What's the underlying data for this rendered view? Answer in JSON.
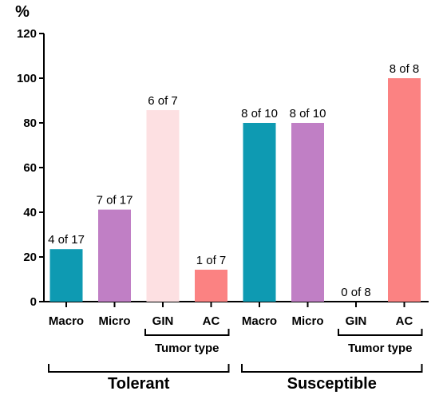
{
  "chart_data": {
    "type": "bar",
    "ylabel": "%",
    "ylim": [
      0,
      120
    ],
    "yticks": [
      0,
      20,
      40,
      60,
      80,
      100,
      120
    ],
    "grid": false,
    "legend": "none",
    "bars": [
      {
        "category": "Macro",
        "value": 23.5,
        "label": "4 of 17",
        "color": "#0e9ab2"
      },
      {
        "category": "Micro",
        "value": 41.2,
        "label": "7 of 17",
        "color": "#c07fc5"
      },
      {
        "category": "GIN",
        "value": 85.7,
        "label": "6 of 7",
        "color": "#fde0e2"
      },
      {
        "category": "AC",
        "value": 14.3,
        "label": "1 of 7",
        "color": "#fb8282"
      },
      {
        "category": "Macro",
        "value": 80,
        "label": "8 of 10",
        "color": "#0e9ab2"
      },
      {
        "category": "Micro",
        "value": 80,
        "label": "8 of 10",
        "color": "#c07fc5"
      },
      {
        "category": "GIN",
        "value": 0,
        "label": "0 of 8",
        "color": "#fde0e2"
      },
      {
        "category": "AC",
        "value": 100,
        "label": "8 of 8",
        "color": "#fb8282"
      }
    ],
    "subgroups": [
      {
        "label": "Tumor type",
        "from": 2,
        "to": 3
      },
      {
        "label": "Tumor type",
        "from": 6,
        "to": 7
      }
    ],
    "groups": [
      {
        "label": "Tolerant",
        "from": 0,
        "to": 3
      },
      {
        "label": "Susceptible",
        "from": 4,
        "to": 7
      }
    ]
  }
}
